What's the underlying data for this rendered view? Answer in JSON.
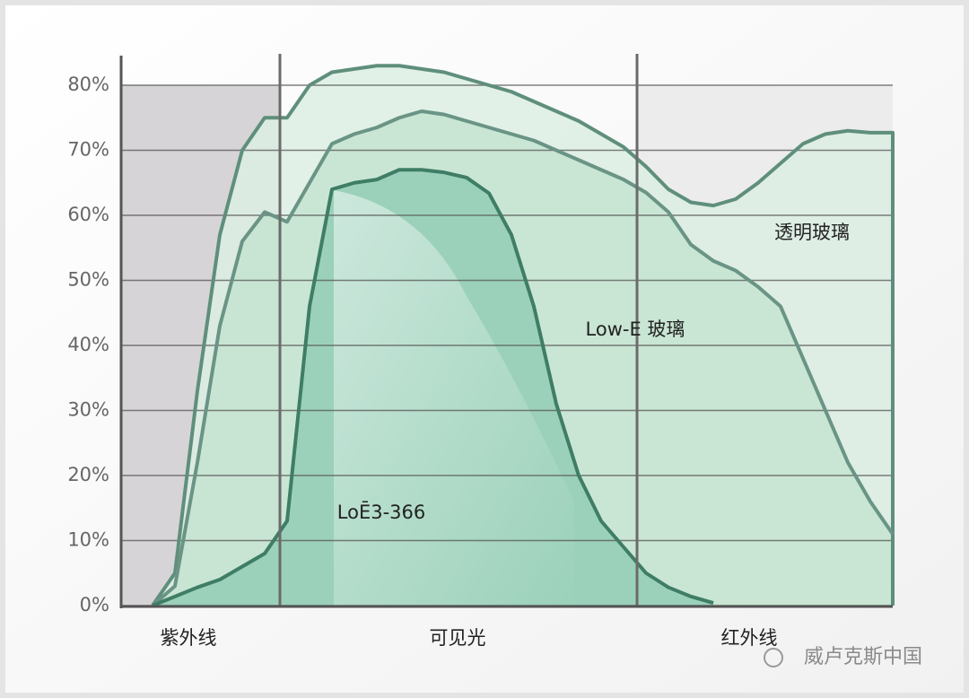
{
  "chart_data": {
    "type": "area",
    "categories": [
      null,
      null,
      "紫外线",
      null,
      null,
      null,
      null,
      null,
      null,
      null,
      null,
      null,
      null,
      null,
      "可见光",
      null,
      null,
      null,
      null,
      null,
      null,
      null,
      null,
      null,
      null,
      null,
      null,
      "红外线",
      null,
      null,
      null,
      null,
      null,
      null
    ],
    "series": [
      {
        "name": "透明玻璃",
        "color": "#5f8f7c",
        "fill": "#dcefe3",
        "values": [
          0,
          5,
          33,
          57,
          70,
          75,
          75,
          80,
          82,
          82.5,
          83,
          83,
          82.5,
          82,
          81,
          80,
          79,
          77.5,
          76,
          74.5,
          72.5,
          70.5,
          67.5,
          64,
          62,
          61.5,
          62.5,
          65,
          68,
          71,
          72.5,
          73,
          72.7,
          72.7
        ]
      },
      {
        "name": "Low-E 玻璃",
        "color": "#6a9486",
        "fill": "#c4e4d0",
        "values": [
          0,
          3,
          22,
          43,
          56,
          60.5,
          59,
          65,
          71,
          72.5,
          73.5,
          75,
          76,
          75.5,
          74.5,
          73.5,
          72.5,
          71.5,
          70,
          68.5,
          67,
          65.5,
          63.5,
          60.5,
          55.5,
          53,
          51.5,
          49,
          46,
          38,
          30,
          22,
          16,
          11
        ]
      },
      {
        "name": "LoĒ3-366",
        "color": "#3f7d66",
        "fill": "#93cdb5",
        "values": [
          0,
          1.4,
          2.8,
          4,
          6,
          8,
          13,
          46,
          64,
          65,
          65.5,
          67,
          67,
          66.6,
          65.8,
          63.4,
          57,
          46,
          31,
          20,
          13,
          9,
          5,
          2.8,
          1.4,
          0.4,
          null,
          null,
          null,
          null,
          null,
          null,
          null,
          null
        ]
      }
    ],
    "ylim": [
      0,
      84
    ],
    "yticks": [
      {
        "value": 0,
        "label": "0%"
      },
      {
        "value": 10,
        "label": "10%"
      },
      {
        "value": 20,
        "label": "20%"
      },
      {
        "value": 30,
        "label": "30%"
      },
      {
        "value": 40,
        "label": "40%"
      },
      {
        "value": 50,
        "label": "50%"
      },
      {
        "value": 60,
        "label": "60%"
      },
      {
        "value": 70,
        "label": "70%"
      },
      {
        "value": 80,
        "label": "80%"
      }
    ],
    "grid": true,
    "watermark": "威卢克斯中国"
  }
}
